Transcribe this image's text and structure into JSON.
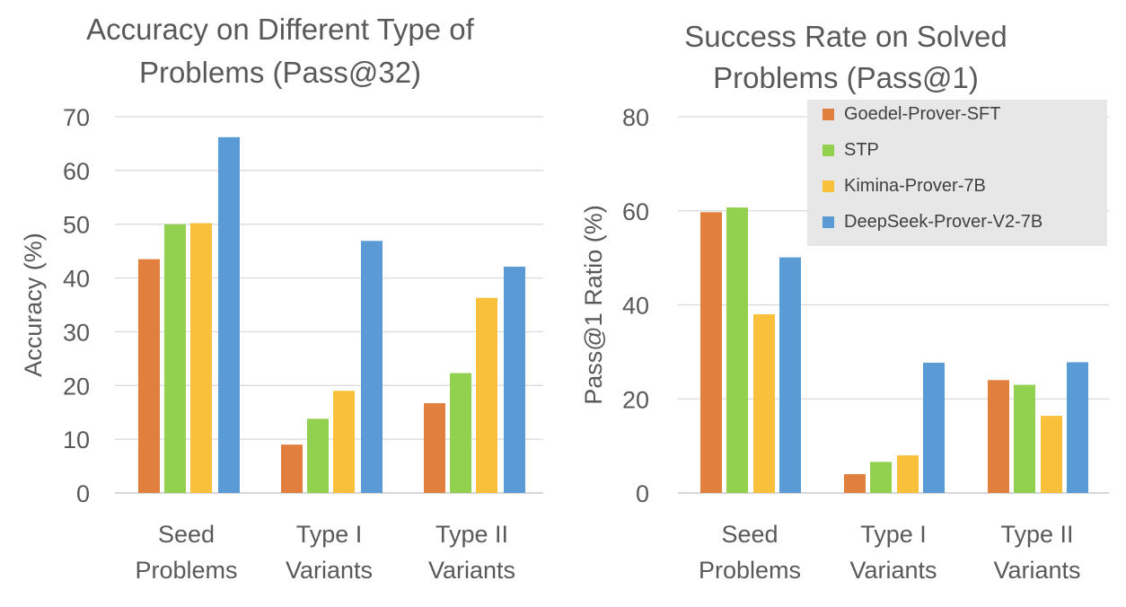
{
  "colors": {
    "series": [
      "#E07F3E",
      "#92D050",
      "#F9C03C",
      "#5B9BD5"
    ],
    "grid": "#d9d9d9",
    "legend_bg": "#e7e7e7"
  },
  "chart_data": [
    {
      "type": "bar",
      "title_lines": [
        "Accuracy on Different Type of",
        "Problems (Pass@32)"
      ],
      "ylabel": "Accuracy (%)",
      "ylim": [
        0,
        70
      ],
      "yticks": [
        0,
        10,
        20,
        30,
        40,
        50,
        60,
        70
      ],
      "categories": [
        [
          "Seed",
          "Problems"
        ],
        [
          "Type I",
          "Variants"
        ],
        [
          "Type II",
          "Variants"
        ]
      ],
      "series": [
        {
          "name": "Goedel-Prover-SFT",
          "values": [
            43.5,
            9.0,
            16.7
          ]
        },
        {
          "name": "STP",
          "values": [
            50.0,
            13.8,
            22.3
          ]
        },
        {
          "name": "Kimina-Prover-7B",
          "values": [
            50.2,
            19.0,
            36.3
          ]
        },
        {
          "name": "DeepSeek-Prover-V2-7B",
          "values": [
            66.2,
            46.9,
            42.1
          ]
        }
      ],
      "legend": "none"
    },
    {
      "type": "bar",
      "title_lines": [
        "Success Rate on Solved",
        "Problems (Pass@1)"
      ],
      "ylabel": "Pass@1 Ratio (%)",
      "ylim": [
        0,
        80
      ],
      "yticks": [
        0,
        20,
        40,
        60,
        80
      ],
      "categories": [
        [
          "Seed",
          "Problems"
        ],
        [
          "Type I",
          "Variants"
        ],
        [
          "Type II",
          "Variants"
        ]
      ],
      "series": [
        {
          "name": "Goedel-Prover-SFT",
          "values": [
            59.7,
            4.0,
            24.0
          ]
        },
        {
          "name": "STP",
          "values": [
            60.7,
            6.6,
            23.0
          ]
        },
        {
          "name": "Kimina-Prover-7B",
          "values": [
            38.0,
            8.0,
            16.4
          ]
        },
        {
          "name": "DeepSeek-Prover-V2-7B",
          "values": [
            50.1,
            27.7,
            27.8
          ]
        }
      ],
      "legend": "top-right"
    }
  ]
}
